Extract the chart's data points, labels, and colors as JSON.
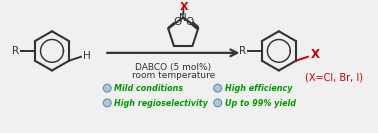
{
  "bg_color": "#f0f0f0",
  "arrow_color": "#333333",
  "text_color": "#333333",
  "green_color": "#009900",
  "red_color": "#cc0000",
  "bullet_face": "#b0c8d8",
  "bullet_edge": "#6090a8",
  "dabco_text": "DABCO (5 mol%)",
  "rt_text": "room temperature",
  "bullet1_left": "Mild conditions",
  "bullet2_left": "High regioselectivity",
  "bullet1_right": "High efficiency",
  "bullet2_right": "Up to 99% yield",
  "figsize": [
    3.78,
    1.33
  ],
  "dpi": 100
}
